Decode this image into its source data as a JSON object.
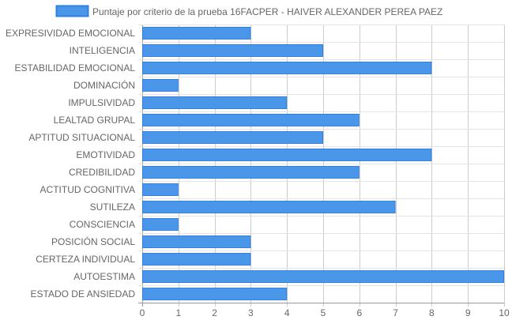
{
  "chart_data": {
    "type": "bar",
    "orientation": "horizontal",
    "categories": [
      "EXPRESIVIDAD EMOCIONAL",
      "INTELIGENCIA",
      "ESTABILIDAD EMOCIONAL",
      "DOMINACIÓN",
      "IMPULSIVIDAD",
      "LEALTAD GRUPAL",
      "APTITUD SITUACIONAL",
      "EMOTIVIDAD",
      "CREDIBILIDAD",
      "ACTITUD COGNITIVA",
      "SUTILEZA",
      "CONSCIENCIA",
      "POSICIÓN SOCIAL",
      "CERTEZA INDIVIDUAL",
      "AUTOESTIMA",
      "ESTADO DE ANSIEDAD"
    ],
    "series": [
      {
        "name": "Puntaje por criterio de la prueba 16FACPER - HAIVER  ALEXANDER PEREA PAEZ",
        "values": [
          3,
          5,
          8,
          1,
          4,
          6,
          5,
          8,
          6,
          1,
          7,
          1,
          3,
          3,
          10,
          4
        ],
        "color": "#4a97ea",
        "border_color": "#2f7fe0"
      }
    ],
    "xlim": [
      0,
      10
    ],
    "x_ticks": [
      "0",
      "1",
      "2",
      "3",
      "4",
      "5",
      "6",
      "7",
      "8",
      "9",
      "10"
    ],
    "grid": true,
    "legend": "top"
  }
}
